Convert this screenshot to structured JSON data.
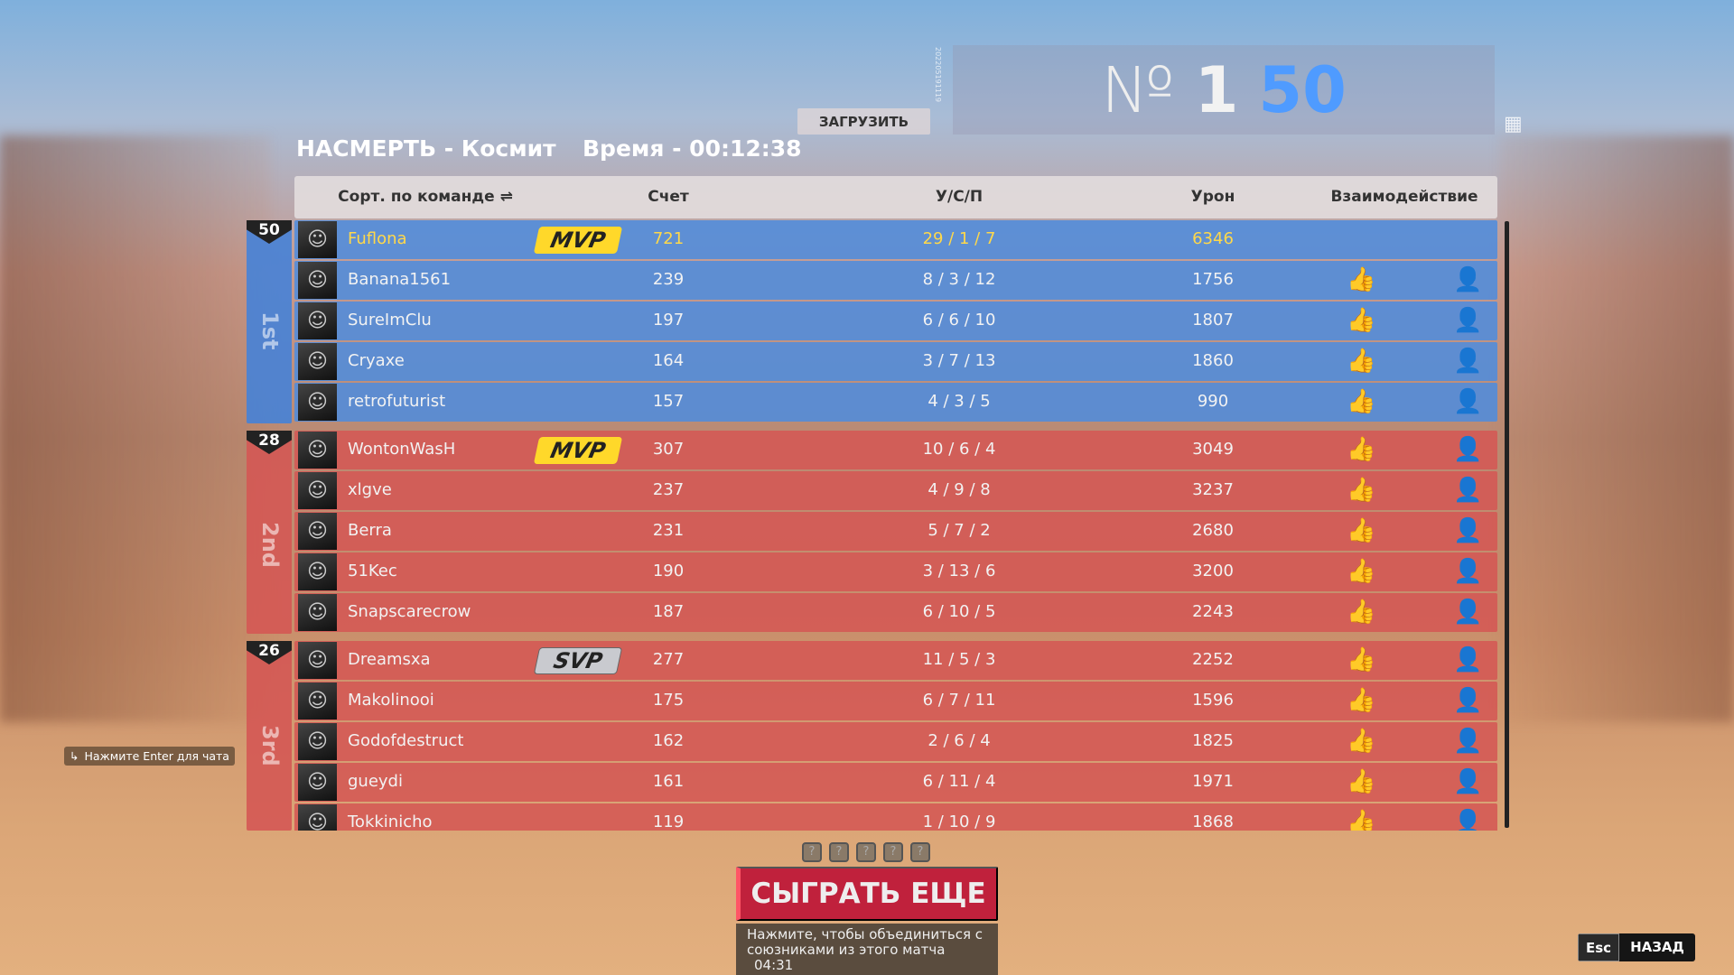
{
  "match": {
    "mode_map": "НАСМЕРТЬ - Космит",
    "time": "Время - 00:12:38",
    "upload_label": "ЗАГРУЗИТЬ",
    "build_id": "202205191119"
  },
  "result": {
    "no_symbol": "№",
    "rank": "1",
    "points": "50",
    "points_color": "#4f9bff"
  },
  "header": {
    "sort": "Сорт. по команде ⇌",
    "score": "Счет",
    "kda": "У/С/П",
    "damage": "Урон",
    "interaction": "Взаимодействие"
  },
  "teams": [
    {
      "points": "50",
      "place": "1st",
      "color": "#508cdc",
      "players": [
        {
          "name": "Fuflona",
          "badge": "MVP",
          "score": "721",
          "kda": "29 / 1 / 7",
          "damage": "6346",
          "self": true
        },
        {
          "name": "Banana1561",
          "badge": "",
          "score": "239",
          "kda": "8 / 3 / 12",
          "damage": "1756"
        },
        {
          "name": "SureImClu",
          "badge": "",
          "score": "197",
          "kda": "6 / 6 / 10",
          "damage": "1807"
        },
        {
          "name": "Cryaxe",
          "badge": "",
          "score": "164",
          "kda": "3 / 7 / 13",
          "damage": "1860"
        },
        {
          "name": "retrofuturist",
          "badge": "",
          "score": "157",
          "kda": "4 / 3 / 5",
          "damage": "990"
        }
      ]
    },
    {
      "points": "28",
      "place": "2nd",
      "color": "#d45854",
      "players": [
        {
          "name": "WontonWasH",
          "badge": "MVP",
          "score": "307",
          "kda": "10 / 6 / 4",
          "damage": "3049"
        },
        {
          "name": "xlgve",
          "badge": "",
          "score": "237",
          "kda": "4 / 9 / 8",
          "damage": "3237"
        },
        {
          "name": "Berra",
          "badge": "",
          "score": "231",
          "kda": "5 / 7 / 2",
          "damage": "2680"
        },
        {
          "name": "51Kec",
          "badge": "",
          "score": "190",
          "kda": "3 / 13 / 6",
          "damage": "3200"
        },
        {
          "name": "Snapscarecrow",
          "badge": "",
          "score": "187",
          "kda": "6 / 10 / 5",
          "damage": "2243"
        }
      ]
    },
    {
      "points": "26",
      "place": "3rd",
      "color": "#d45854",
      "players": [
        {
          "name": "Dreamsxa",
          "badge": "SVP",
          "score": "277",
          "kda": "11 / 5 / 3",
          "damage": "2252"
        },
        {
          "name": "Makolinooi",
          "badge": "",
          "score": "175",
          "kda": "6 / 7 / 11",
          "damage": "1596"
        },
        {
          "name": "Godofdestruct",
          "badge": "",
          "score": "162",
          "kda": "2 / 6 / 4",
          "damage": "1825"
        },
        {
          "name": "gueydi",
          "badge": "",
          "score": "161",
          "kda": "6 / 11 / 4",
          "damage": "1971"
        },
        {
          "name": "Tokkinicho",
          "badge": "",
          "score": "119",
          "kda": "1 / 10 / 9",
          "damage": "1868"
        }
      ]
    }
  ],
  "pager": [
    "?",
    "?",
    "?",
    "?",
    "?"
  ],
  "play_again": {
    "label": "СЫГРАТЬ ЕЩЕ",
    "hint": "Нажмите, чтобы объединиться с союзниками из этого матча",
    "countdown": "04:31"
  },
  "chat_hint": "Нажмите Enter для чата",
  "back": {
    "key": "Esc",
    "label": "НАЗАД"
  }
}
